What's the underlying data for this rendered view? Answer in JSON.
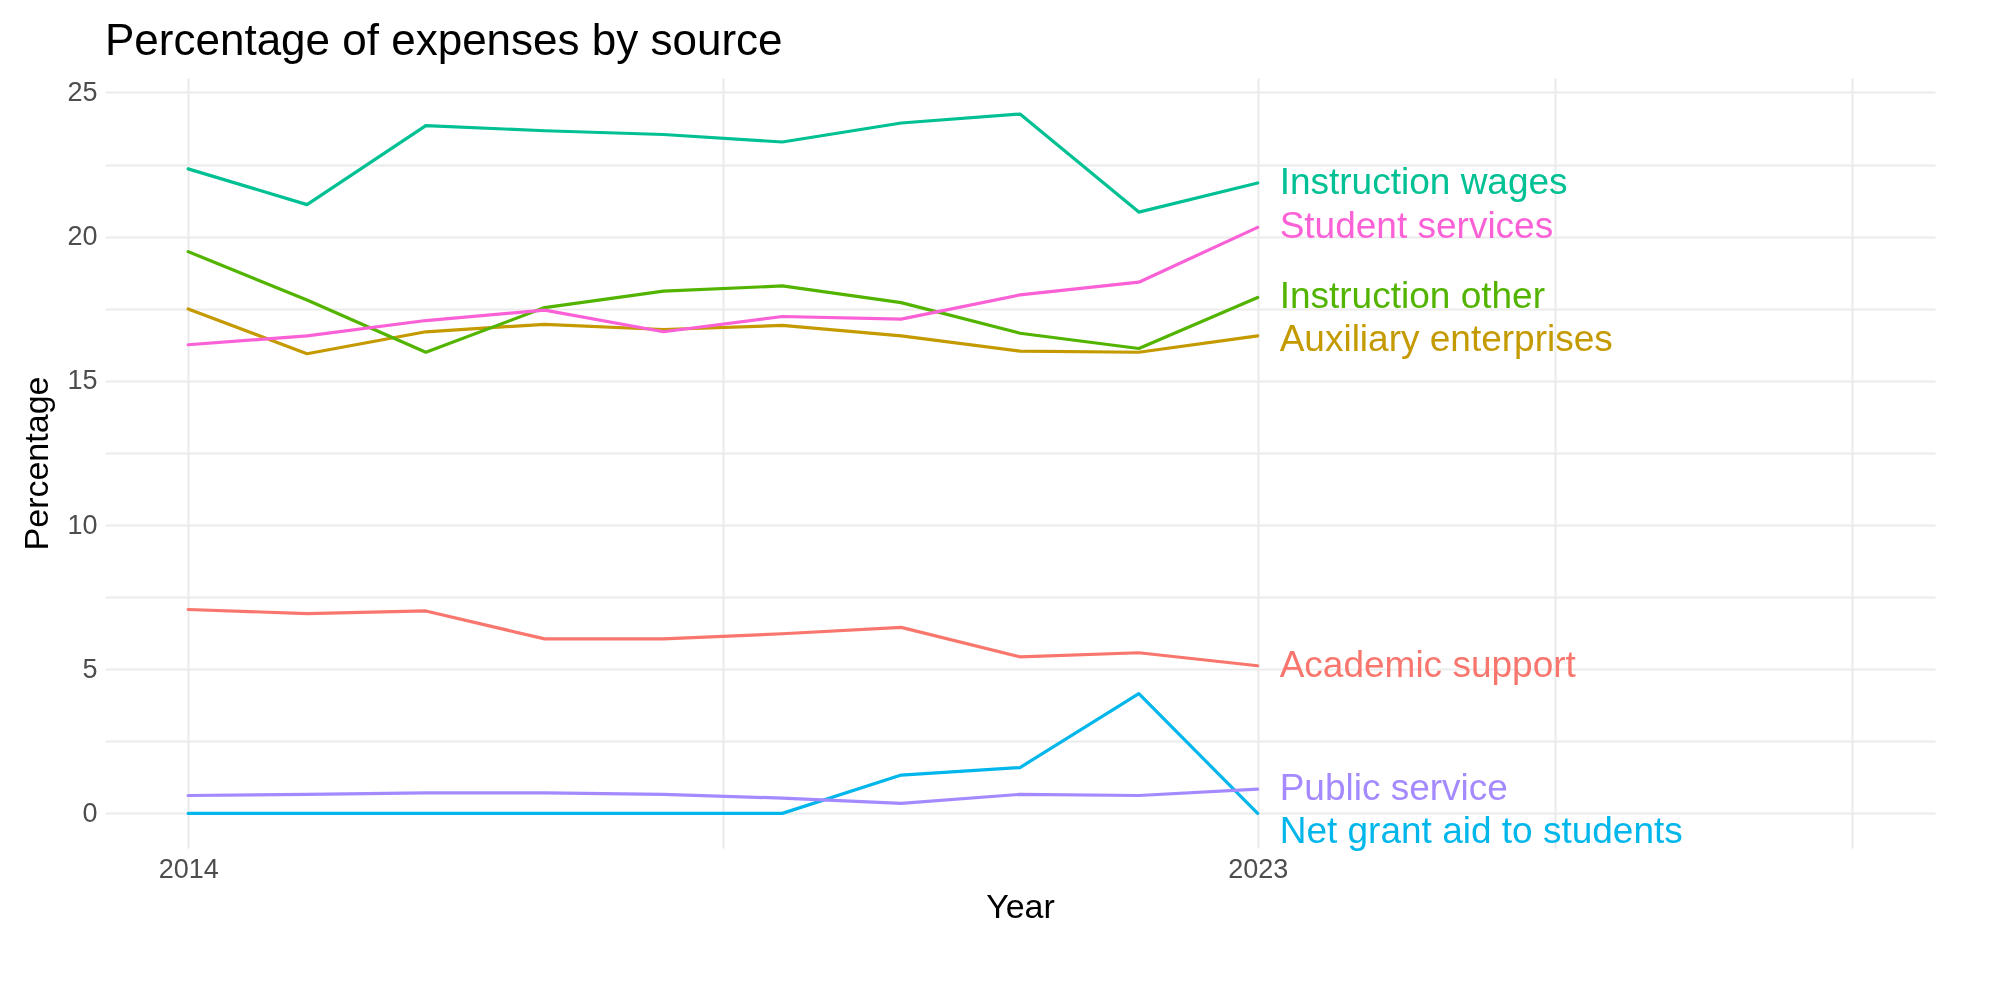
{
  "chart_data": {
    "type": "line",
    "title": "Percentage of expenses by source",
    "xlabel": "Year",
    "ylabel": "Percentage",
    "x": [
      2014,
      2015,
      2016,
      2017,
      2018,
      2019,
      2020,
      2021,
      2022,
      2023
    ],
    "xlim": [
      2013.3,
      2028.7
    ],
    "xticks": [
      2014,
      {
        "value": 2018.5,
        "label": null
      },
      2023,
      {
        "value": 2025.5,
        "label": null
      },
      {
        "value": 2028,
        "label": null
      }
    ],
    "ylim": [
      -1.2,
      25.5
    ],
    "yticks": [
      0,
      {
        "value": 2.5,
        "label": null
      },
      5,
      {
        "value": 7.5,
        "label": null
      },
      10,
      {
        "value": 12.5,
        "label": null
      },
      15,
      {
        "value": 17.5,
        "label": null
      },
      20,
      {
        "value": 22.5,
        "label": null
      },
      25
    ],
    "grid": true,
    "line_style": "solid",
    "marker": "none",
    "series": [
      {
        "name": "Academic support",
        "color": "#f8766d",
        "values": [
          7.07,
          6.93,
          7.02,
          6.05,
          6.05,
          6.23,
          6.45,
          5.43,
          5.57,
          5.12
        ]
      },
      {
        "name": "Auxiliary enterprises",
        "color": "#c49a00",
        "values": [
          17.49,
          15.94,
          16.7,
          16.96,
          16.78,
          16.92,
          16.56,
          16.03,
          15.99,
          16.56
        ]
      },
      {
        "name": "Instruction other",
        "color": "#53b400",
        "values": [
          19.48,
          17.8,
          15.99,
          17.54,
          18.11,
          18.29,
          17.71,
          16.65,
          16.12,
          17.89
        ]
      },
      {
        "name": "Instruction wages",
        "color": "#00c094",
        "values": [
          22.35,
          21.11,
          23.85,
          23.67,
          23.54,
          23.28,
          23.94,
          24.25,
          20.85,
          21.86
        ]
      },
      {
        "name": "Net grant aid to students",
        "color": "#00b6eb",
        "values": [
          0,
          0,
          0,
          0,
          0,
          0,
          1.33,
          1.59,
          4.15,
          0
        ]
      },
      {
        "name": "Public service",
        "color": "#a58aff",
        "values": [
          0.62,
          0.66,
          0.71,
          0.71,
          0.66,
          0.53,
          0.35,
          0.66,
          0.62,
          0.84
        ]
      },
      {
        "name": "Student services",
        "color": "#fb61d7",
        "values": [
          16.25,
          16.56,
          17.09,
          17.45,
          16.7,
          17.23,
          17.14,
          17.98,
          18.42,
          20.32
        ]
      }
    ]
  }
}
